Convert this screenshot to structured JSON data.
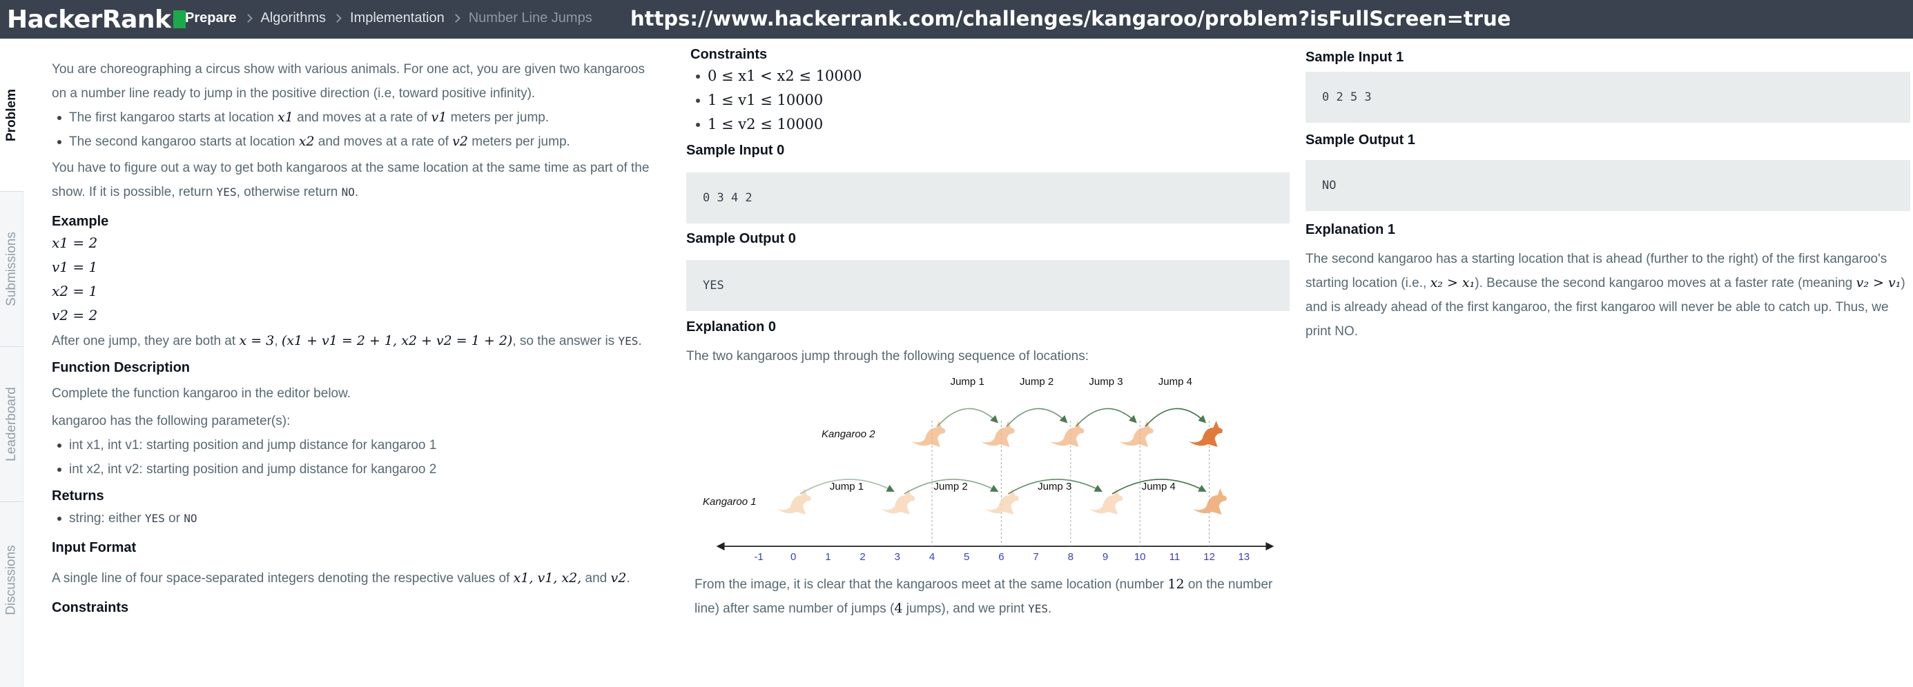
{
  "header": {
    "logo": "HackerRank",
    "url": "https://www.hackerrank.com/challenges/kangaroo/problem?isFullScreen=true",
    "breadcrumbs": [
      "Prepare",
      "Algorithms",
      "Implementation",
      "Number Line Jumps"
    ]
  },
  "sidetabs": [
    "Problem",
    "Submissions",
    "Leaderboard",
    "Discussions"
  ],
  "problem": {
    "intro": "You are choreographing a circus show with various animals. For one act, you are given two kangaroos on a number line ready to jump in the positive direction (i.e, toward positive infinity).",
    "b1_pre": "The first kangaroo starts at location ",
    "b1_x": "x1",
    "b1_mid": " and moves at a rate of ",
    "b1_v": "v1",
    "b1_post": " meters per jump.",
    "b2_pre": "The second kangaroo starts at location ",
    "b2_x": "x2",
    "b2_mid": " and moves at a rate of ",
    "b2_v": "v2",
    "b2_post": " meters per jump.",
    "task_pre": "You have to figure out a way to get both kangaroos at the same location at the same time as part of the show. If it is possible, return ",
    "yes": "YES",
    "task_mid": ", otherwise return ",
    "no": "NO",
    "task_post": ".",
    "example_h": "Example",
    "example": [
      "x1 = 2",
      "v1 = 1",
      "x2 = 1",
      "v2 = 2"
    ],
    "after_pre": "After one jump, they are both at ",
    "after_m1": "x = 3",
    ", ": ", ",
    "after_m2": "(x1 + v1 = 2 + 1, x2 + v2 = 1 + 2)",
    "after_post": ", so the answer is ",
    "func_h": "Function Description",
    "func_p": "Complete the function kangaroo in the editor below.",
    "params_p": "kangaroo has the following parameter(s):",
    "params": [
      "int x1, int v1: starting position and jump distance for kangaroo 1",
      "int x2, int v2: starting position and jump distance for kangaroo 2"
    ],
    "returns_h": "Returns",
    "returns_pre": "string: either ",
    "returns_mid": " or ",
    "input_h": "Input Format",
    "input_pre": "A single line of four space-separated integers denoting the respective values of ",
    "input_vars": "x1, v1, x2,",
    "input_and": " and ",
    "input_last": "v2",
    "input_post": ".",
    "constraints_h": "Constraints"
  },
  "col2": {
    "constraints_h": "Constraints",
    "constraints": [
      "0 ≤ x1 < x2 ≤ 10000",
      "1 ≤ v1 ≤ 10000",
      "1 ≤ v2 ≤ 10000"
    ],
    "si0_h": "Sample Input 0",
    "si0": "0 3 4 2",
    "so0_h": "Sample Output 0",
    "so0": "YES",
    "ex0_h": "Explanation 0",
    "ex0_p": "The two kangaroos jump through the following sequence of locations:",
    "fig": {
      "jumps_top": [
        "Jump 1",
        "Jump 2",
        "Jump 3",
        "Jump 4"
      ],
      "jumps_bottom": [
        "Jump 1",
        "Jump 2",
        "Jump 3",
        "Jump 4"
      ],
      "k1": "Kangaroo 1",
      "k2": "Kangaroo 2",
      "ticks": [
        "-1",
        "0",
        "1",
        "2",
        "3",
        "4",
        "5",
        "6",
        "7",
        "8",
        "9",
        "10",
        "11",
        "12",
        "13"
      ]
    },
    "ex0_end_pre": "From the image, it is clear that the kangaroos meet at the same location (number ",
    "ex0_12": "12",
    "ex0_end_mid": " on the number line) after same number of jumps (",
    "ex0_4": "4",
    "ex0_end_post": " jumps), and we print "
  },
  "col3": {
    "si1_h": "Sample Input 1",
    "si1": "0 2 5 3",
    "so1_h": "Sample Output 1",
    "so1": "NO",
    "ex1_h": "Explanation 1",
    "ex1_a": "The second kangaroo has a starting location that is ahead (further to the right) of the first kangaroo's starting location (i.e., ",
    "ex1_m1": "x₂ > x₁",
    "ex1_b": "). Because the second kangaroo moves at a faster rate (meaning ",
    "ex1_m2": "v₂ > v₁",
    "ex1_c": ") and is already ahead of the first kangaroo, the first kangaroo will never be able to catch up. Thus, we print NO."
  }
}
